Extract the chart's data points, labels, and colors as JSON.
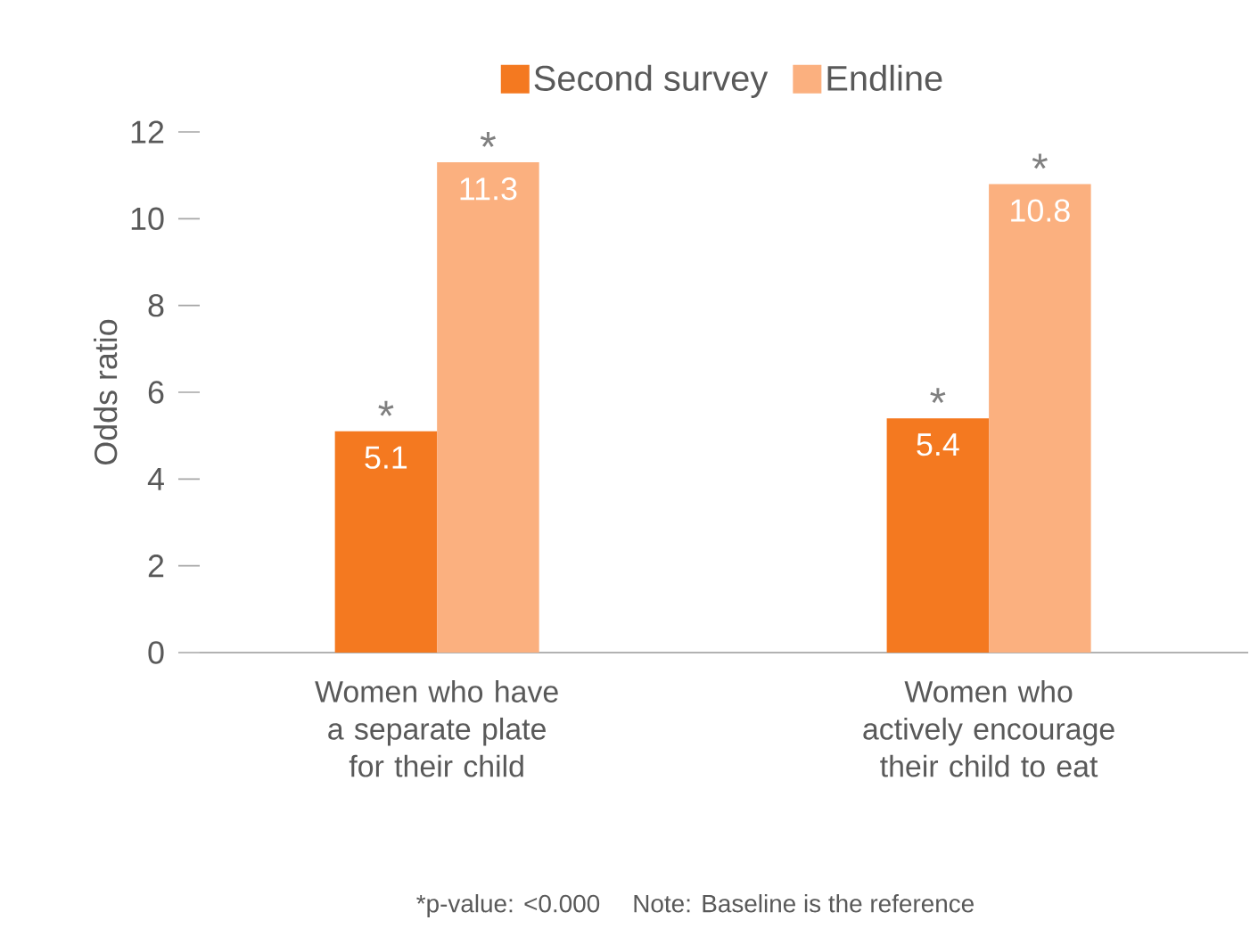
{
  "chart_data": {
    "type": "bar",
    "ylabel": "Odds ratio",
    "categories": [
      "Women who have a separate plate for their child",
      "Women who actively encourage their child to eat"
    ],
    "series": [
      {
        "name": "Second survey",
        "color": "#f47920",
        "values": [
          5.1,
          5.4
        ]
      },
      {
        "name": "Endline",
        "color": "#fbb07f",
        "values": [
          11.3,
          10.8
        ]
      }
    ],
    "ylim": [
      0,
      12
    ],
    "yticks": [
      0,
      2,
      4,
      6,
      8,
      10,
      12
    ],
    "grid": false,
    "legend": "top",
    "data_labels": true,
    "annotations": [
      {
        "text": "*",
        "x": "Women who have a separate plate for their child",
        "y": 5.1
      },
      {
        "text": "*",
        "x": "Women who have a separate plate for their child",
        "y": 11.3
      },
      {
        "text": "*",
        "x": "Women who actively encourage their child to eat",
        "y": 5.4
      },
      {
        "text": "*",
        "x": "Women who actively encourage their child to eat",
        "y": 10.8
      },
      "*p-value: <0.000",
      "Note: Baseline is the reference"
    ]
  }
}
